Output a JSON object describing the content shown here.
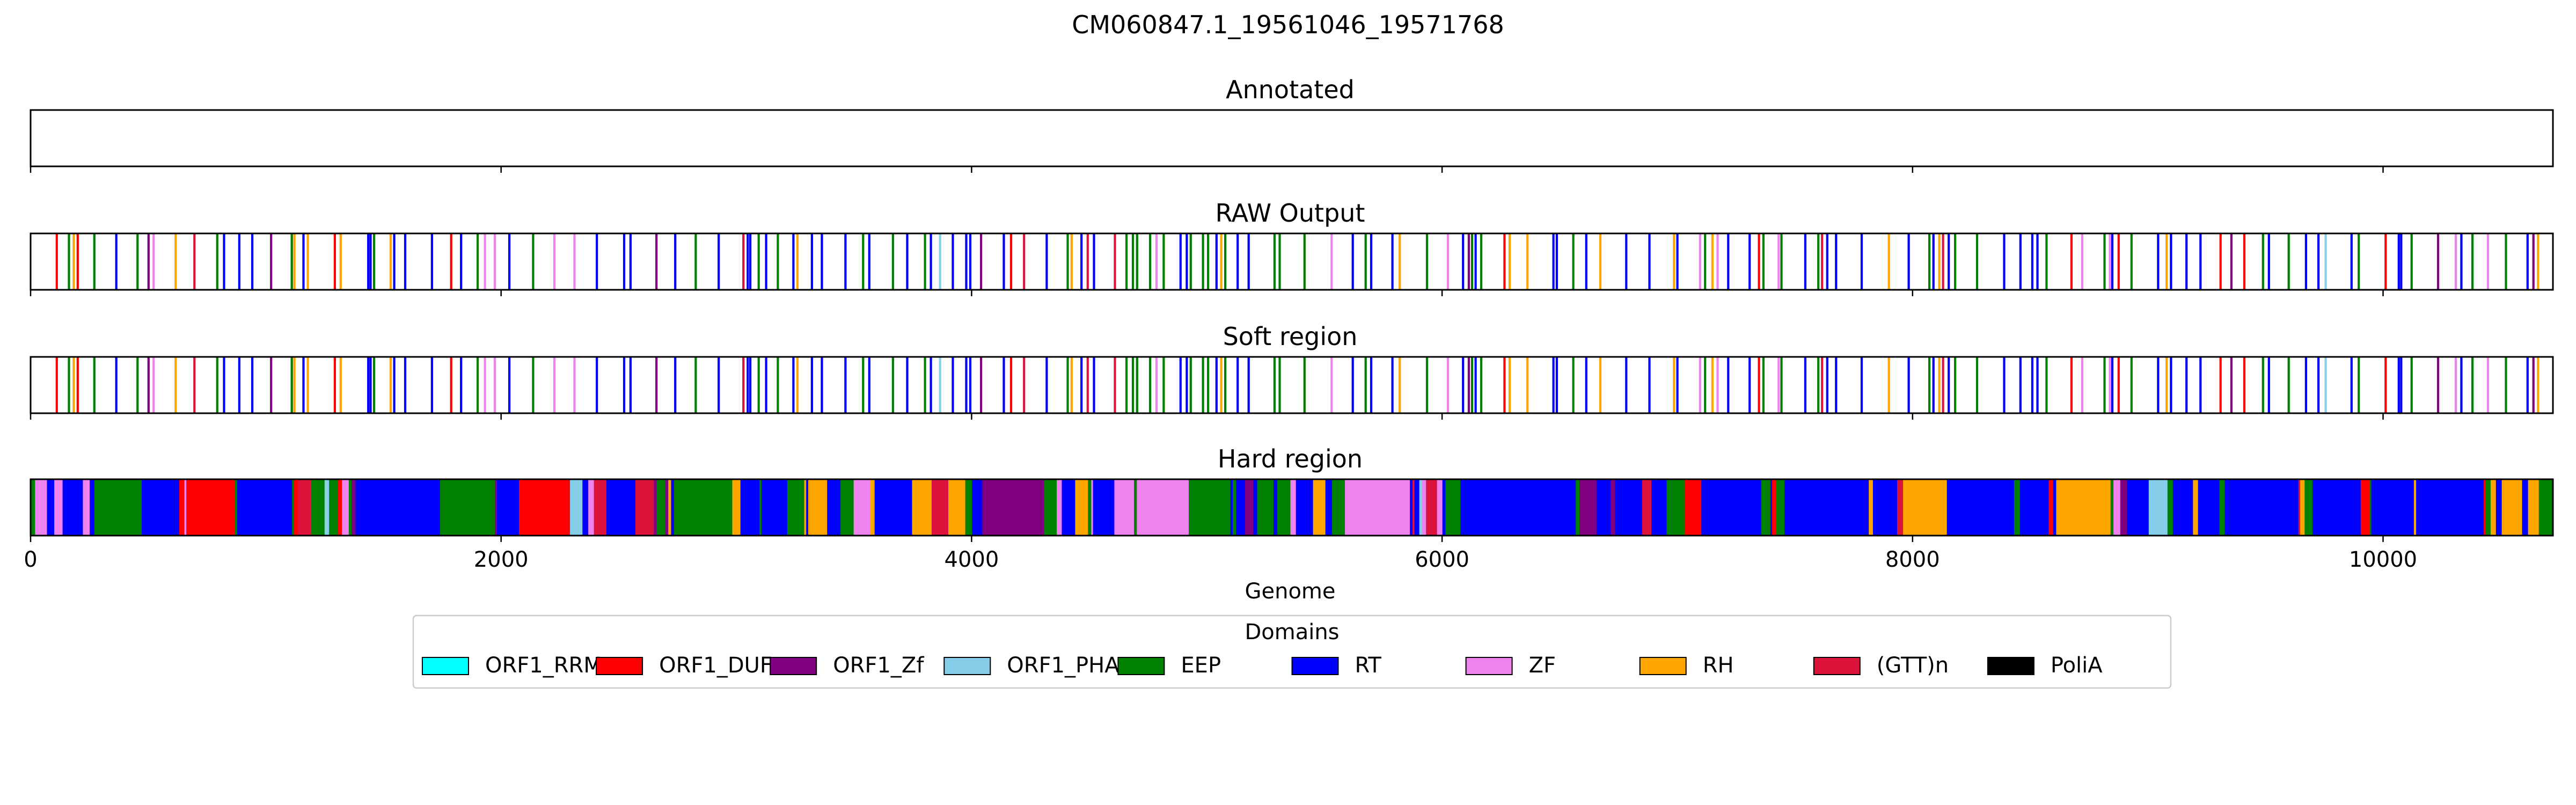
{
  "chart_data": {
    "type": "track",
    "title": "CM060847.1_19561046_19571768",
    "xlabel": "Genome",
    "xlim": [
      0,
      10722
    ],
    "xticks": [
      0,
      2000,
      4000,
      6000,
      8000,
      10000
    ],
    "xtick_labels": [
      "0",
      "2000",
      "4000",
      "6000",
      "8000",
      "10000"
    ],
    "tracks": [
      {
        "name": "Annotated",
        "mode": "empty"
      },
      {
        "name": "RAW Output",
        "mode": "lines"
      },
      {
        "name": "Soft region",
        "mode": "lines"
      },
      {
        "name": "Hard region",
        "mode": "fill"
      }
    ],
    "legend": {
      "title": "Domains",
      "placement": "lower-center",
      "entries": [
        {
          "label": "ORF1_RRM",
          "color": "#00ffff"
        },
        {
          "label": "ORF1_DUF",
          "color": "#ff0000"
        },
        {
          "label": "ORF1_Zf",
          "color": "#800080"
        },
        {
          "label": "ORF1_PHA",
          "color": "#87ceeb"
        },
        {
          "label": "EEP",
          "color": "#008000"
        },
        {
          "label": "RT",
          "color": "#0000ff"
        },
        {
          "label": "ZF",
          "color": "#ee82ee"
        },
        {
          "label": "RH",
          "color": "#ffa500"
        },
        {
          "label": "(GTT)n",
          "color": "#dc143c"
        },
        {
          "label": "PoliA",
          "color": "#000000"
        }
      ]
    }
  }
}
